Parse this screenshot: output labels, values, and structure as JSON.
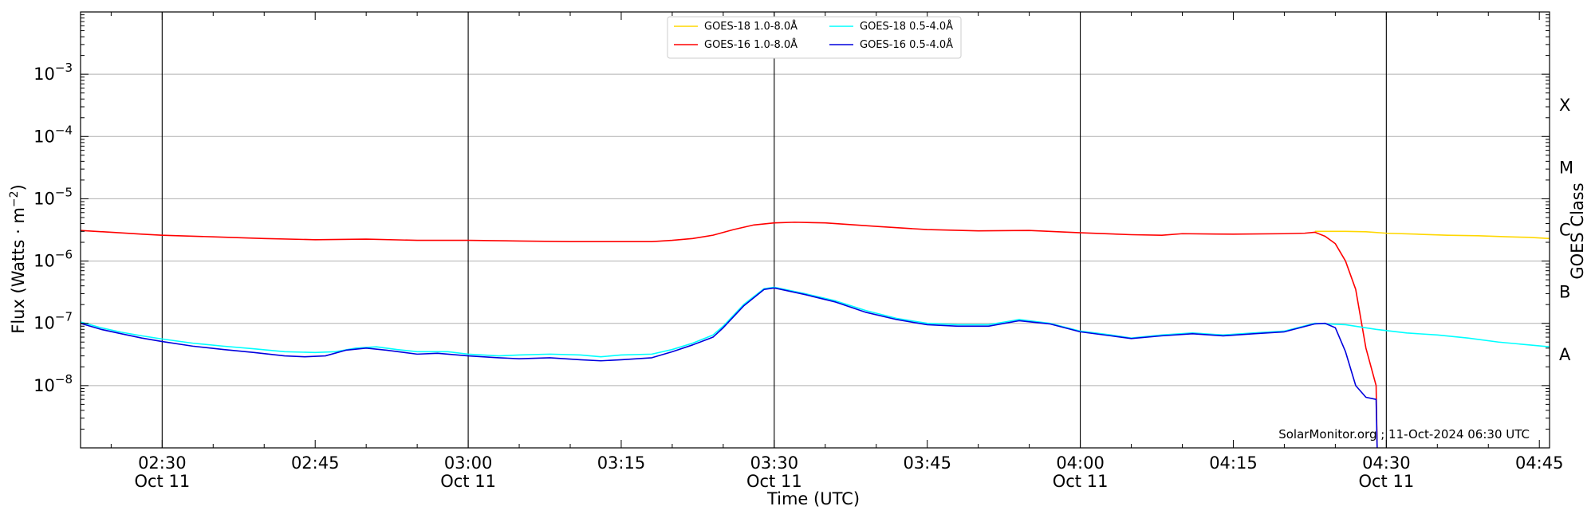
{
  "chart_data": {
    "type": "line",
    "xlabel": "Time (UTC)",
    "ylabel": "Flux (Watts · m",
    "ylabel_sup": "−2",
    "ylabel_close": ")",
    "right_label": "GOES Class",
    "y_scale": "log",
    "ylim": [
      1e-09,
      0.01
    ],
    "xlim": [
      "02:22",
      "04:46"
    ],
    "grid": "horizontal at decades; vertical lines every 30 min",
    "legend_placement": "upper-center",
    "credit": "SolarMonitor.org ; 11-Oct-2024 06:30 UTC",
    "y_ticks": [
      {
        "value": 1e-08,
        "base": "10",
        "exp": "−8"
      },
      {
        "value": 1e-07,
        "base": "10",
        "exp": "−7"
      },
      {
        "value": 1e-06,
        "base": "10",
        "exp": "−6"
      },
      {
        "value": 1e-05,
        "base": "10",
        "exp": "−5"
      },
      {
        "value": 0.0001,
        "base": "10",
        "exp": "−4"
      },
      {
        "value": 0.001,
        "base": "10",
        "exp": "−3"
      }
    ],
    "x_ticks": [
      {
        "time": "02:30",
        "label": "02:30",
        "sub": "Oct 11"
      },
      {
        "time": "02:45",
        "label": "02:45",
        "sub": ""
      },
      {
        "time": "03:00",
        "label": "03:00",
        "sub": "Oct 11"
      },
      {
        "time": "03:15",
        "label": "03:15",
        "sub": ""
      },
      {
        "time": "03:30",
        "label": "03:30",
        "sub": "Oct 11"
      },
      {
        "time": "03:45",
        "label": "03:45",
        "sub": ""
      },
      {
        "time": "04:00",
        "label": "04:00",
        "sub": "Oct 11"
      },
      {
        "time": "04:15",
        "label": "04:15",
        "sub": ""
      },
      {
        "time": "04:30",
        "label": "04:30",
        "sub": "Oct 11"
      },
      {
        "time": "04:45",
        "label": "04:45",
        "sub": ""
      }
    ],
    "vertical_lines": [
      "02:30",
      "03:00",
      "03:30",
      "04:00",
      "04:30"
    ],
    "classes": [
      {
        "label": "A",
        "value": 3.16e-08
      },
      {
        "label": "B",
        "value": 3.16e-07
      },
      {
        "label": "C",
        "value": 3.16e-06
      },
      {
        "label": "M",
        "value": 3.16e-05
      },
      {
        "label": "X",
        "value": 0.000316
      }
    ],
    "series": [
      {
        "name": "GOES-18 1.0-8.0Å",
        "color": "#ffd700",
        "points": [
          [
            "04:23",
            3e-06
          ],
          [
            "04:26",
            3e-06
          ],
          [
            "04:28",
            2.95e-06
          ],
          [
            "04:30",
            2.8e-06
          ],
          [
            "04:33",
            2.7e-06
          ],
          [
            "04:36",
            2.6e-06
          ],
          [
            "04:39",
            2.55e-06
          ],
          [
            "04:42",
            2.45e-06
          ],
          [
            "04:44",
            2.4e-06
          ],
          [
            "04:46",
            2.3e-06
          ]
        ]
      },
      {
        "name": "GOES-16 1.0-8.0Å",
        "color": "#ff0000",
        "points": [
          [
            "02:22",
            3.1e-06
          ],
          [
            "02:25",
            2.9e-06
          ],
          [
            "02:28",
            2.7e-06
          ],
          [
            "02:30",
            2.6e-06
          ],
          [
            "02:35",
            2.45e-06
          ],
          [
            "02:40",
            2.3e-06
          ],
          [
            "02:45",
            2.2e-06
          ],
          [
            "02:50",
            2.25e-06
          ],
          [
            "02:55",
            2.15e-06
          ],
          [
            "03:00",
            2.15e-06
          ],
          [
            "03:05",
            2.1e-06
          ],
          [
            "03:10",
            2.05e-06
          ],
          [
            "03:15",
            2.05e-06
          ],
          [
            "03:18",
            2.05e-06
          ],
          [
            "03:20",
            2.15e-06
          ],
          [
            "03:22",
            2.3e-06
          ],
          [
            "03:24",
            2.6e-06
          ],
          [
            "03:26",
            3.2e-06
          ],
          [
            "03:28",
            3.8e-06
          ],
          [
            "03:30",
            4.1e-06
          ],
          [
            "03:32",
            4.2e-06
          ],
          [
            "03:35",
            4.1e-06
          ],
          [
            "03:40",
            3.6e-06
          ],
          [
            "03:45",
            3.2e-06
          ],
          [
            "03:50",
            3.05e-06
          ],
          [
            "03:55",
            3.1e-06
          ],
          [
            "04:00",
            2.85e-06
          ],
          [
            "04:05",
            2.65e-06
          ],
          [
            "04:08",
            2.6e-06
          ],
          [
            "04:10",
            2.75e-06
          ],
          [
            "04:15",
            2.7e-06
          ],
          [
            "04:20",
            2.75e-06
          ],
          [
            "04:22",
            2.8e-06
          ],
          [
            "04:23",
            2.9e-06
          ],
          [
            "04:24",
            2.5e-06
          ],
          [
            "04:25",
            1.9e-06
          ],
          [
            "04:26",
            1e-06
          ],
          [
            "04:27",
            3.5e-07
          ],
          [
            "04:28",
            4e-08
          ],
          [
            "04:29",
            1e-08
          ],
          [
            "04:29.1",
            1e-09
          ]
        ]
      },
      {
        "name": "GOES-18 0.5-4.0Å",
        "color": "#00ffff",
        "points": [
          [
            "02:22",
            1.05e-07
          ],
          [
            "02:24",
            8.5e-08
          ],
          [
            "02:26",
            7.2e-08
          ],
          [
            "02:28",
            6.3e-08
          ],
          [
            "02:30",
            5.6e-08
          ],
          [
            "02:33",
            4.8e-08
          ],
          [
            "02:36",
            4.3e-08
          ],
          [
            "02:39",
            3.9e-08
          ],
          [
            "02:42",
            3.5e-08
          ],
          [
            "02:45",
            3.4e-08
          ],
          [
            "02:47",
            3.5e-08
          ],
          [
            "02:49",
            4e-08
          ],
          [
            "02:51",
            4.2e-08
          ],
          [
            "02:53",
            3.8e-08
          ],
          [
            "02:55",
            3.5e-08
          ],
          [
            "02:58",
            3.5e-08
          ],
          [
            "03:00",
            3.2e-08
          ],
          [
            "03:03",
            3e-08
          ],
          [
            "03:05",
            3.1e-08
          ],
          [
            "03:08",
            3.2e-08
          ],
          [
            "03:11",
            3.1e-08
          ],
          [
            "03:13",
            2.9e-08
          ],
          [
            "03:15",
            3.1e-08
          ],
          [
            "03:18",
            3.2e-08
          ],
          [
            "03:20",
            3.8e-08
          ],
          [
            "03:22",
            4.8e-08
          ],
          [
            "03:24",
            6.5e-08
          ],
          [
            "03:25",
            9e-08
          ],
          [
            "03:27",
            2e-07
          ],
          [
            "03:29",
            3.6e-07
          ],
          [
            "03:30",
            3.8e-07
          ],
          [
            "03:33",
            3e-07
          ],
          [
            "03:36",
            2.3e-07
          ],
          [
            "03:39",
            1.6e-07
          ],
          [
            "03:42",
            1.2e-07
          ],
          [
            "03:45",
            1e-07
          ],
          [
            "03:48",
            9.5e-08
          ],
          [
            "03:51",
            9.5e-08
          ],
          [
            "03:54",
            1.15e-07
          ],
          [
            "03:57",
            1e-07
          ],
          [
            "04:00",
            7.5e-08
          ],
          [
            "04:03",
            6.5e-08
          ],
          [
            "04:05",
            5.8e-08
          ],
          [
            "04:08",
            6.5e-08
          ],
          [
            "04:11",
            7e-08
          ],
          [
            "04:14",
            6.5e-08
          ],
          [
            "04:17",
            7e-08
          ],
          [
            "04:20",
            7.5e-08
          ],
          [
            "04:23",
            1e-07
          ],
          [
            "04:26",
            9.5e-08
          ],
          [
            "04:29",
            8e-08
          ],
          [
            "04:32",
            7e-08
          ],
          [
            "04:35",
            6.5e-08
          ],
          [
            "04:38",
            5.8e-08
          ],
          [
            "04:41",
            5e-08
          ],
          [
            "04:44",
            4.5e-08
          ],
          [
            "04:46",
            4.2e-08
          ]
        ]
      },
      {
        "name": "GOES-16 0.5-4.0Å",
        "color": "#0000dd",
        "points": [
          [
            "02:22",
            1e-07
          ],
          [
            "02:24",
            8e-08
          ],
          [
            "02:26",
            6.8e-08
          ],
          [
            "02:28",
            5.8e-08
          ],
          [
            "02:30",
            5.1e-08
          ],
          [
            "02:33",
            4.3e-08
          ],
          [
            "02:36",
            3.8e-08
          ],
          [
            "02:39",
            3.4e-08
          ],
          [
            "02:42",
            3e-08
          ],
          [
            "02:44",
            2.9e-08
          ],
          [
            "02:46",
            3e-08
          ],
          [
            "02:48",
            3.7e-08
          ],
          [
            "02:50",
            4e-08
          ],
          [
            "02:52",
            3.7e-08
          ],
          [
            "02:55",
            3.2e-08
          ],
          [
            "02:57",
            3.3e-08
          ],
          [
            "03:00",
            3e-08
          ],
          [
            "03:03",
            2.8e-08
          ],
          [
            "03:05",
            2.7e-08
          ],
          [
            "03:08",
            2.8e-08
          ],
          [
            "03:11",
            2.6e-08
          ],
          [
            "03:13",
            2.5e-08
          ],
          [
            "03:15",
            2.6e-08
          ],
          [
            "03:18",
            2.8e-08
          ],
          [
            "03:20",
            3.5e-08
          ],
          [
            "03:22",
            4.5e-08
          ],
          [
            "03:24",
            6e-08
          ],
          [
            "03:25",
            8.5e-08
          ],
          [
            "03:27",
            1.9e-07
          ],
          [
            "03:29",
            3.5e-07
          ],
          [
            "03:30",
            3.7e-07
          ],
          [
            "03:33",
            2.9e-07
          ],
          [
            "03:36",
            2.2e-07
          ],
          [
            "03:39",
            1.5e-07
          ],
          [
            "03:42",
            1.15e-07
          ],
          [
            "03:45",
            9.5e-08
          ],
          [
            "03:48",
            9e-08
          ],
          [
            "03:51",
            9e-08
          ],
          [
            "03:54",
            1.1e-07
          ],
          [
            "03:57",
            9.8e-08
          ],
          [
            "04:00",
            7.3e-08
          ],
          [
            "04:03",
            6.3e-08
          ],
          [
            "04:05",
            5.7e-08
          ],
          [
            "04:08",
            6.3e-08
          ],
          [
            "04:11",
            6.8e-08
          ],
          [
            "04:14",
            6.3e-08
          ],
          [
            "04:17",
            6.8e-08
          ],
          [
            "04:20",
            7.3e-08
          ],
          [
            "04:23",
            9.8e-08
          ],
          [
            "04:24",
            1e-07
          ],
          [
            "04:25",
            8.5e-08
          ],
          [
            "04:26",
            3.5e-08
          ],
          [
            "04:27",
            1e-08
          ],
          [
            "04:28",
            6.5e-09
          ],
          [
            "04:29",
            6e-09
          ],
          [
            "04:29.1",
            1e-09
          ]
        ]
      }
    ]
  }
}
